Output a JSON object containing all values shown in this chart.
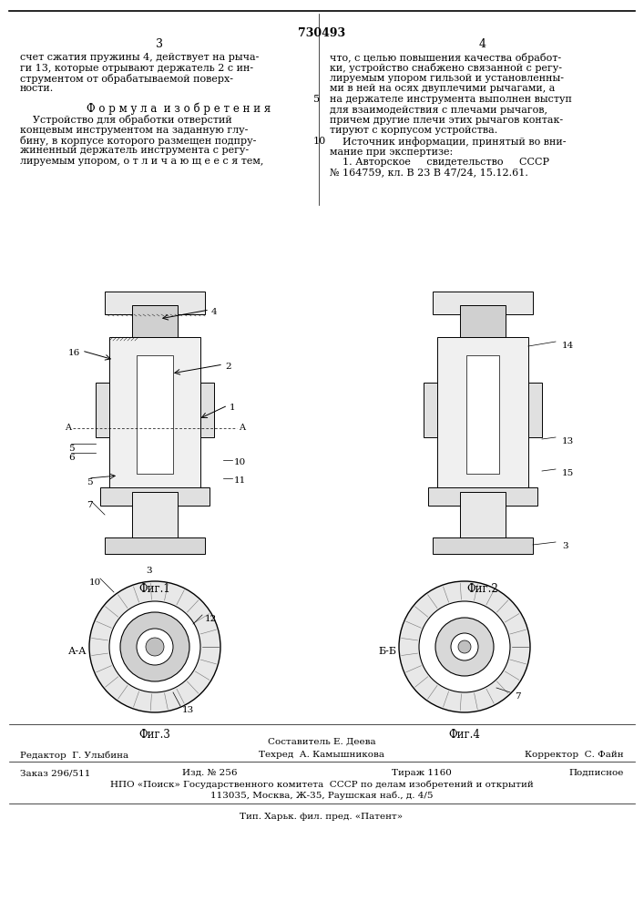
{
  "patent_number": "730493",
  "page_numbers": [
    "3",
    "4"
  ],
  "background_color": "#ffffff",
  "text_color": "#000000",
  "col1_text": [
    "счет сжатия пружины 4, действует на рыча-",
    "ги 13, которые отрывают держатель 2 с ин-",
    "струментом от обрабатываемой поверх-",
    "ности."
  ],
  "formula_title": "Ф о р м у л а  и з о б р е т е н и я",
  "formula_text": [
    "    Устройство для обработки отверстий",
    "концевым инструментом на заданную глу-",
    "бину, в корпусе которого размещен подпру-",
    "жиненный держатель инструмента с регу-",
    "лируемым упором, о т л и ч а ю щ е е с я тем,"
  ],
  "col2_text_prefix": "5",
  "col2_text": [
    "что, с целью повышения качества обработ-",
    "ки, устройство снабжено связанной с регу-",
    "лируемым упором гильзой и установленны-",
    "ми в ней на осях двуплечими рычагами, а",
    "на держателе инструмента выполнен выступ",
    "для взаимодействия с плечами рычагов,",
    "причем другие плечи этих рычагов контак-",
    "тируют с корпусом устройства.",
    "    Источник информации, принятый во вни-",
    "мание при экспертизе:",
    "    1. Авторское     свидетельство     СССР",
    "№ 164759, кл. В 23 В 47/24, 15.12.61."
  ],
  "col2_line_prefix_10": "10",
  "fig_captions": [
    "Фиг.1",
    "Фиг.2",
    "Фиг.3",
    "Фиг.4"
  ],
  "section_labels": [
    "А-А",
    "Б-Б"
  ],
  "part_labels_fig1": [
    "4",
    "2",
    "1",
    "16",
    "10",
    "11",
    "5",
    "6",
    "5",
    "7",
    "3"
  ],
  "part_labels_fig2": [
    "14",
    "13",
    "15",
    "3"
  ],
  "part_labels_fig3": [
    "10",
    "12",
    "13"
  ],
  "part_labels_fig4": [
    "7"
  ],
  "footer_line1": "Составитель Е. Деева",
  "footer_line2_parts": [
    "Редактор  Г. Улыбина",
    "Техред  А. Камышникова",
    "Корректор  С. Файн"
  ],
  "footer_line3_parts": [
    "Заказ 296/511",
    "Изд. № 256",
    "Тираж 1160",
    "Подписное"
  ],
  "footer_line4": "НПО «Поиск» Государственного комитета  СССР по делам изобретений и открытий",
  "footer_line5": "113035, Москва, Ж-35, Раушская наб., д. 4/5",
  "footer_line6": "Тип. Харьк. фил. пред. «Патент»"
}
